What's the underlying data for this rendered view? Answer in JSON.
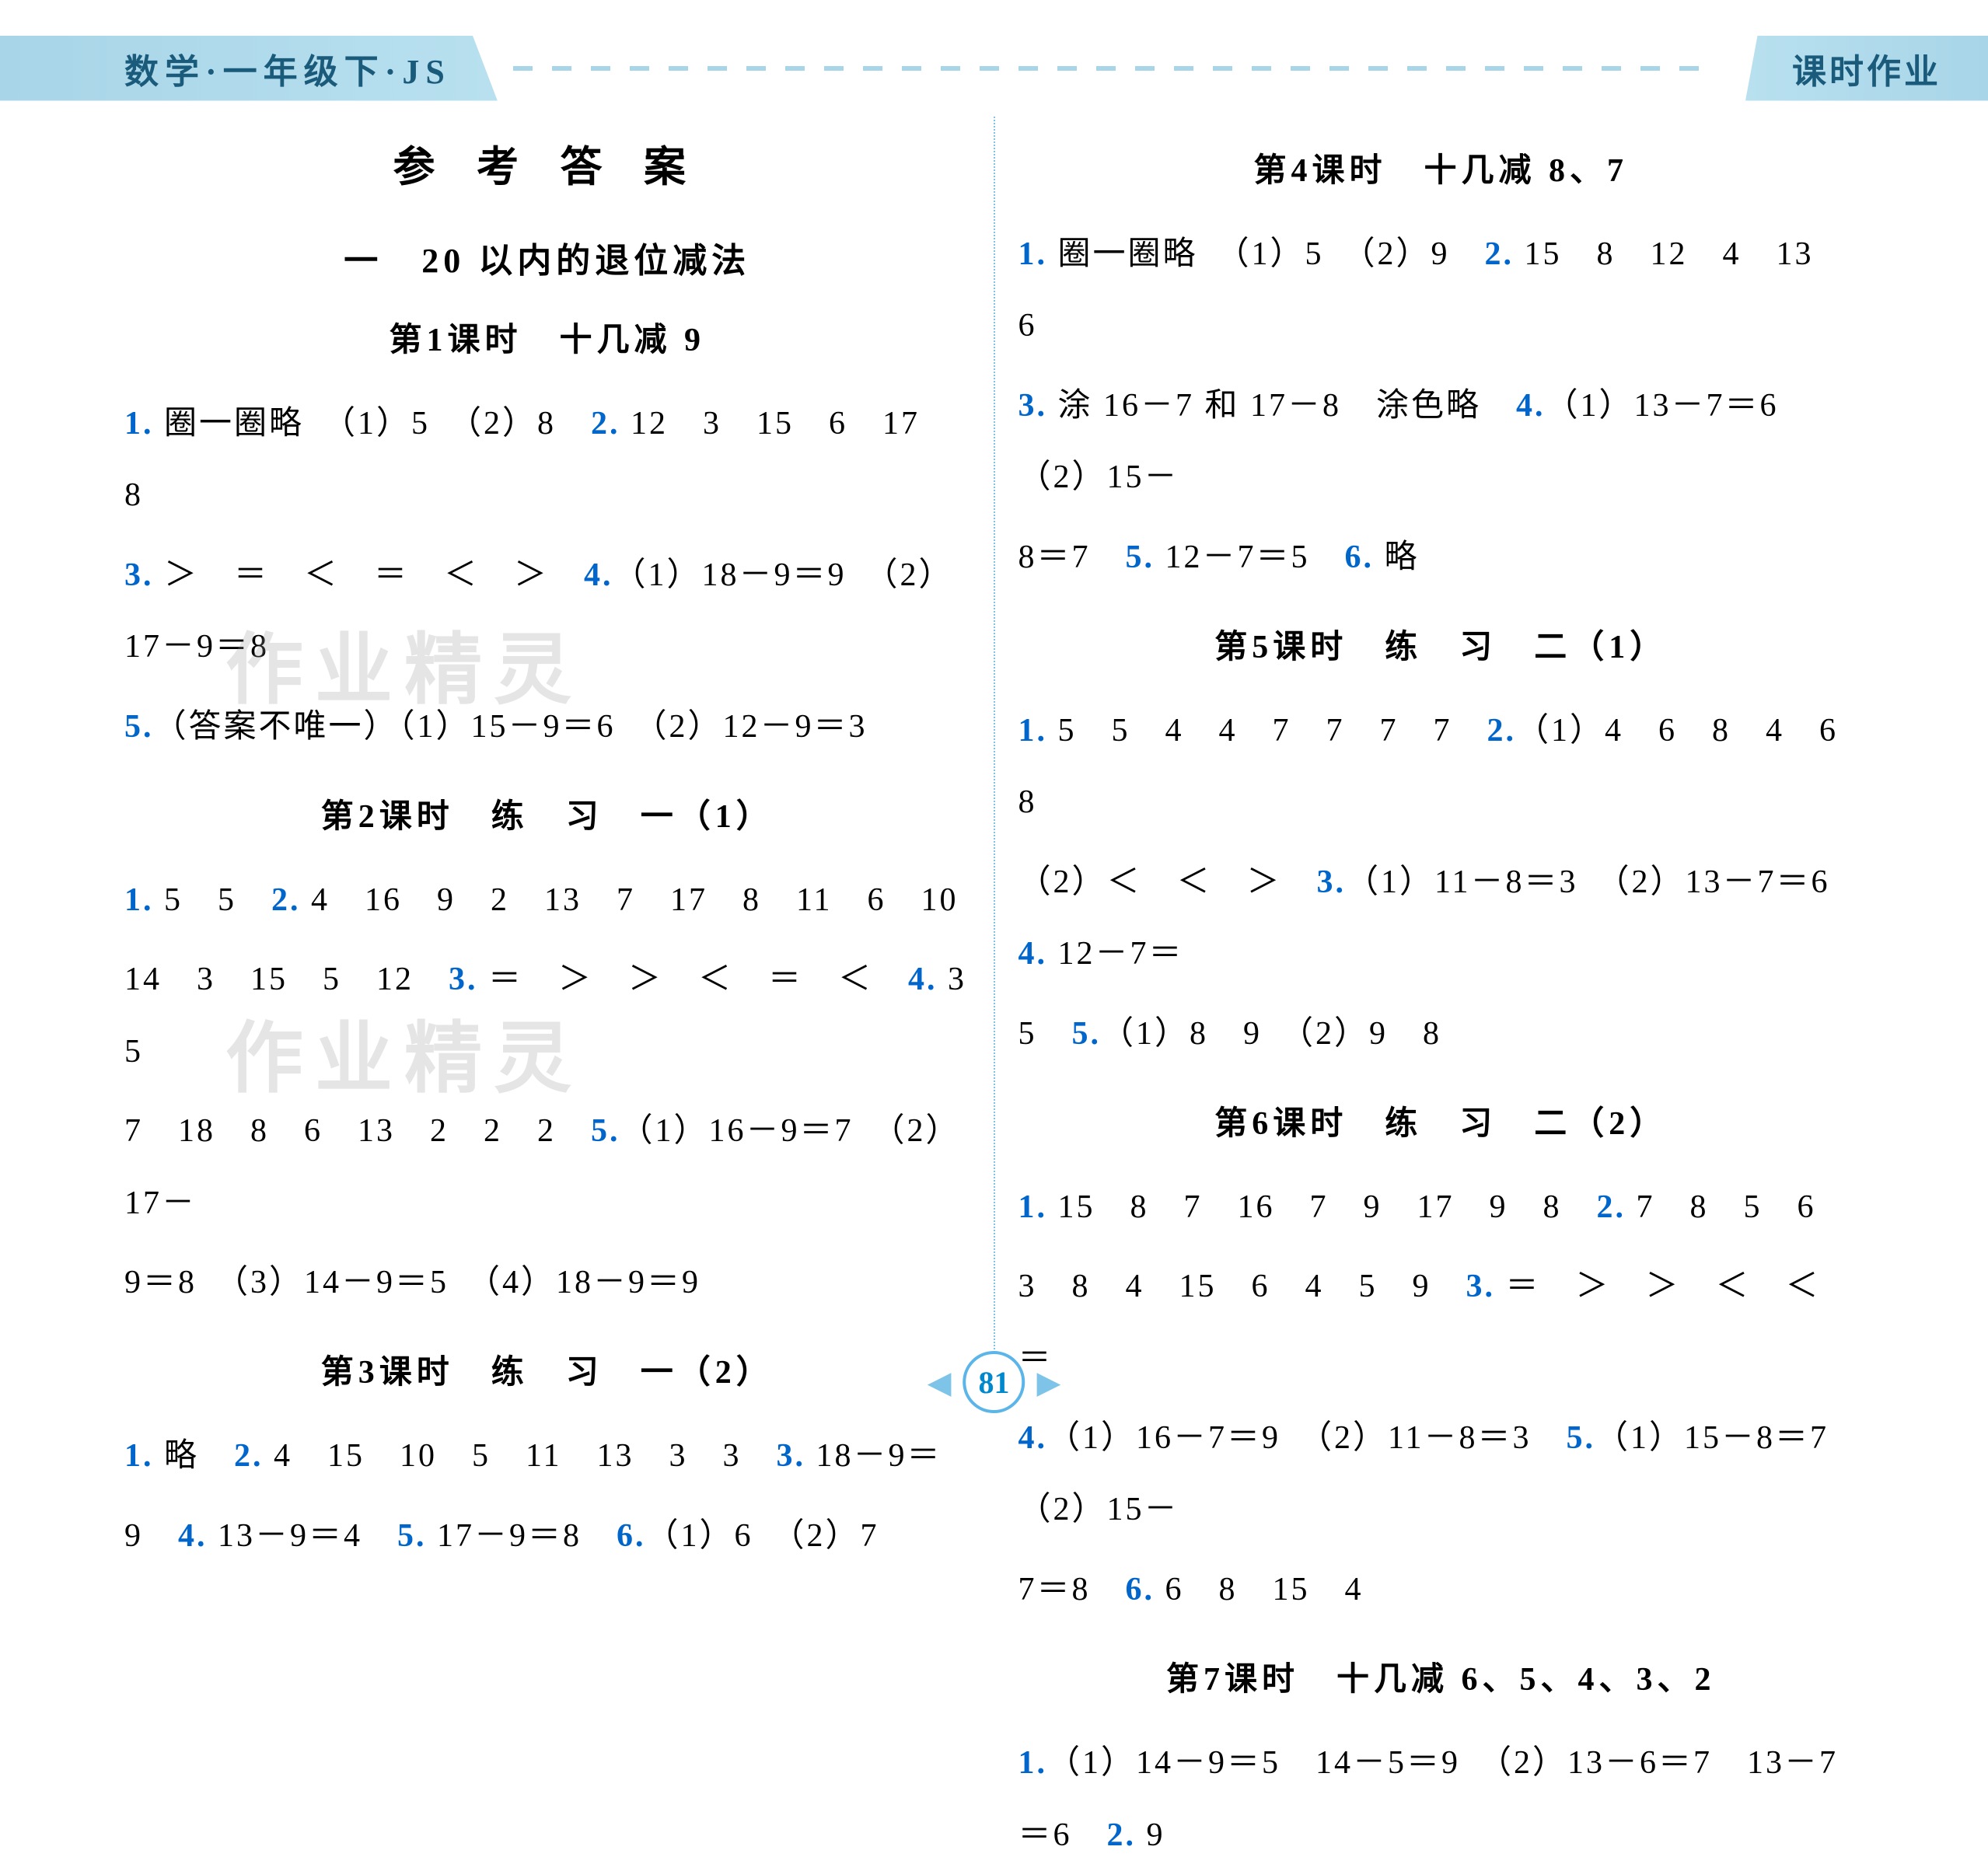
{
  "header": {
    "left": "数学·一年级下·JS",
    "right": "课时作业"
  },
  "pageNumber": "81",
  "leftColumn": {
    "mainTitle": "参 考 答 案",
    "sectionTitle": "一　20 以内的退位减法",
    "lessons": [
      {
        "title": "第1课时　十几减 9",
        "lines": [
          {
            "parts": [
              {
                "type": "q",
                "text": "1."
              },
              {
                "type": "t",
                "text": " 圈一圈略　（1）5　（2）8　"
              },
              {
                "type": "q",
                "text": "2."
              },
              {
                "type": "t",
                "text": " 12　3　15　6　17　8"
              }
            ]
          },
          {
            "parts": [
              {
                "type": "q",
                "text": "3."
              },
              {
                "type": "t",
                "text": " ＞　＝　＜　＝　＜　＞　"
              },
              {
                "type": "q",
                "text": "4."
              },
              {
                "type": "t",
                "text": "（1）18－9＝9　（2）17－9＝8"
              }
            ]
          },
          {
            "parts": [
              {
                "type": "q",
                "text": "5."
              },
              {
                "type": "t",
                "text": "（答案不唯一）（1）15－9＝6　（2）12－9＝3"
              }
            ]
          }
        ]
      },
      {
        "title": "第2课时　练　习　一（1）",
        "lines": [
          {
            "parts": [
              {
                "type": "q",
                "text": "1."
              },
              {
                "type": "t",
                "text": " 5　5　"
              },
              {
                "type": "q",
                "text": "2."
              },
              {
                "type": "t",
                "text": " 4　16　9　2　13　7　17　8　11　6　10"
              }
            ]
          },
          {
            "parts": [
              {
                "type": "t",
                "text": "14　3　15　5　12　"
              },
              {
                "type": "q",
                "text": "3."
              },
              {
                "type": "t",
                "text": " ＝　＞　＞　＜　＝　＜　"
              },
              {
                "type": "q",
                "text": "4."
              },
              {
                "type": "t",
                "text": " 3　5"
              }
            ]
          },
          {
            "parts": [
              {
                "type": "t",
                "text": "7　18　8　6　13　2　2　2　"
              },
              {
                "type": "q",
                "text": "5."
              },
              {
                "type": "t",
                "text": "（1）16－9＝7　（2）17－"
              }
            ]
          },
          {
            "parts": [
              {
                "type": "t",
                "text": "9＝8　（3）14－9＝5　（4）18－9＝9"
              }
            ]
          }
        ]
      },
      {
        "title": "第3课时　练　习　一（2）",
        "lines": [
          {
            "parts": [
              {
                "type": "q",
                "text": "1."
              },
              {
                "type": "t",
                "text": " 略　"
              },
              {
                "type": "q",
                "text": "2."
              },
              {
                "type": "t",
                "text": " 4　15　10　5　11　13　3　3　"
              },
              {
                "type": "q",
                "text": "3."
              },
              {
                "type": "t",
                "text": " 18－9＝"
              }
            ]
          },
          {
            "parts": [
              {
                "type": "t",
                "text": "9　"
              },
              {
                "type": "q",
                "text": "4."
              },
              {
                "type": "t",
                "text": " 13－9＝4　"
              },
              {
                "type": "q",
                "text": "5."
              },
              {
                "type": "t",
                "text": " 17－9＝8　"
              },
              {
                "type": "q",
                "text": "6."
              },
              {
                "type": "t",
                "text": "（1）6　（2）7"
              }
            ]
          }
        ]
      }
    ]
  },
  "rightColumn": {
    "lessons": [
      {
        "title": "第4课时　十几减 8、7",
        "lines": [
          {
            "parts": [
              {
                "type": "q",
                "text": "1."
              },
              {
                "type": "t",
                "text": " 圈一圈略　（1）5　（2）9　"
              },
              {
                "type": "q",
                "text": "2."
              },
              {
                "type": "t",
                "text": " 15　8　12　4　13　6"
              }
            ]
          },
          {
            "parts": [
              {
                "type": "q",
                "text": "3."
              },
              {
                "type": "t",
                "text": " 涂 16－7 和 17－8　涂色略　"
              },
              {
                "type": "q",
                "text": "4."
              },
              {
                "type": "t",
                "text": "（1）13－7＝6　（2）15－"
              }
            ]
          },
          {
            "parts": [
              {
                "type": "t",
                "text": "8＝7　"
              },
              {
                "type": "q",
                "text": "5."
              },
              {
                "type": "t",
                "text": " 12－7＝5　"
              },
              {
                "type": "q",
                "text": "6."
              },
              {
                "type": "t",
                "text": " 略"
              }
            ]
          }
        ]
      },
      {
        "title": "第5课时　练　习　二（1）",
        "lines": [
          {
            "parts": [
              {
                "type": "q",
                "text": "1."
              },
              {
                "type": "t",
                "text": " 5　5　4　4　7　7　7　7　"
              },
              {
                "type": "q",
                "text": "2."
              },
              {
                "type": "t",
                "text": "（1）4　6　8　4　6　8"
              }
            ]
          },
          {
            "parts": [
              {
                "type": "t",
                "text": "（2）＜　＜　＞　"
              },
              {
                "type": "q",
                "text": "3."
              },
              {
                "type": "t",
                "text": "（1）11－8＝3　（2）13－7＝6　"
              },
              {
                "type": "q",
                "text": "4."
              },
              {
                "type": "t",
                "text": " 12－7＝"
              }
            ]
          },
          {
            "parts": [
              {
                "type": "t",
                "text": "5　"
              },
              {
                "type": "q",
                "text": "5."
              },
              {
                "type": "t",
                "text": "（1）8　9　（2）9　8"
              }
            ]
          }
        ]
      },
      {
        "title": "第6课时　练　习　二（2）",
        "lines": [
          {
            "parts": [
              {
                "type": "q",
                "text": "1."
              },
              {
                "type": "t",
                "text": " 15　8　7　16　7　9　17　9　8　"
              },
              {
                "type": "q",
                "text": "2."
              },
              {
                "type": "t",
                "text": " 7　8　5　6"
              }
            ]
          },
          {
            "parts": [
              {
                "type": "t",
                "text": "3　8　4　15　6　4　5　9　"
              },
              {
                "type": "q",
                "text": "3."
              },
              {
                "type": "t",
                "text": " ＝　＞　＞　＜　＜　＝"
              }
            ]
          },
          {
            "parts": [
              {
                "type": "q",
                "text": "4."
              },
              {
                "type": "t",
                "text": "（1）16－7＝9　（2）11－8＝3　"
              },
              {
                "type": "q",
                "text": "5."
              },
              {
                "type": "t",
                "text": "（1）15－8＝7　（2）15－"
              }
            ]
          },
          {
            "parts": [
              {
                "type": "t",
                "text": "7＝8　"
              },
              {
                "type": "q",
                "text": "6."
              },
              {
                "type": "t",
                "text": " 6　8　15　4"
              }
            ]
          }
        ]
      },
      {
        "title": "第7课时　十几减 6、5、4、3、2",
        "lines": [
          {
            "parts": [
              {
                "type": "q",
                "text": "1."
              },
              {
                "type": "t",
                "text": "（1）14－9＝5　14－5＝9　（2）13－6＝7　13－7＝6　"
              },
              {
                "type": "q",
                "text": "2."
              },
              {
                "type": "t",
                "text": " 9"
              }
            ]
          }
        ]
      }
    ]
  },
  "watermark": "作业精灵",
  "colors": {
    "questionNumber": "#0066cc",
    "text": "#000000",
    "bannerBg": "#a8d5e8",
    "bannerText": "#1a5a7a",
    "pageCircle": "#5bb5e8",
    "pageText": "#0088cc",
    "divider": "#7ec4e8"
  },
  "fonts": {
    "mainTitleSize": 54,
    "sectionTitleSize": 44,
    "lessonTitleSize": 42,
    "bodySize": 42,
    "headerSize": 44
  }
}
